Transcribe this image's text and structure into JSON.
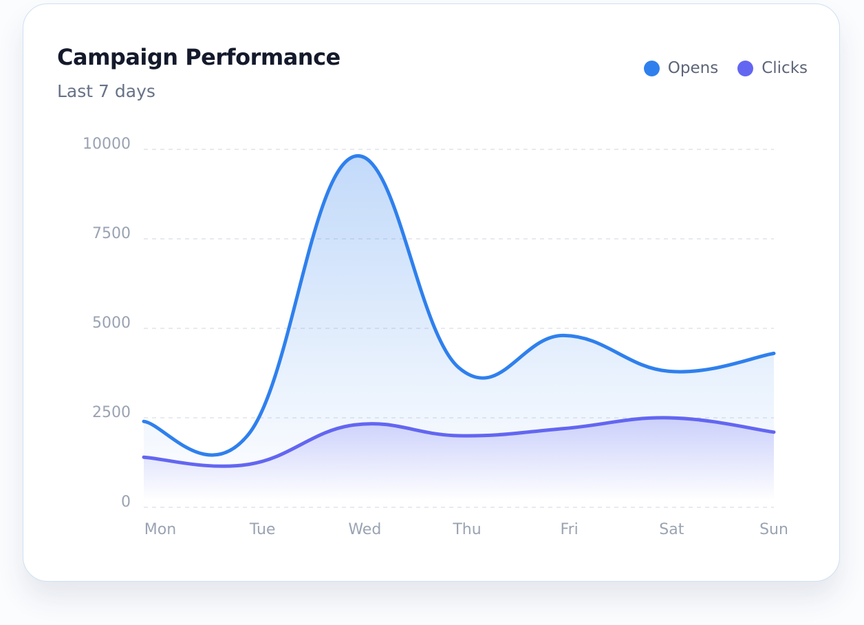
{
  "chart_data": {
    "type": "area",
    "title": "Campaign Performance",
    "subtitle": "Last 7 days",
    "categories": [
      "Mon",
      "Tue",
      "Wed",
      "Thu",
      "Fri",
      "Sat",
      "Sun"
    ],
    "series": [
      {
        "name": "Opens",
        "color": "#2f80ed",
        "values": [
          2400,
          2050,
          9800,
          3900,
          4800,
          3800,
          4300
        ]
      },
      {
        "name": "Clicks",
        "color": "#6366f1",
        "values": [
          1400,
          1200,
          2300,
          2000,
          2200,
          2500,
          2100
        ]
      }
    ],
    "yticks": [
      "0",
      "2500",
      "5000",
      "7500",
      "10000"
    ],
    "ylim": [
      0,
      10000
    ],
    "grid": true,
    "legend": "top-right"
  }
}
